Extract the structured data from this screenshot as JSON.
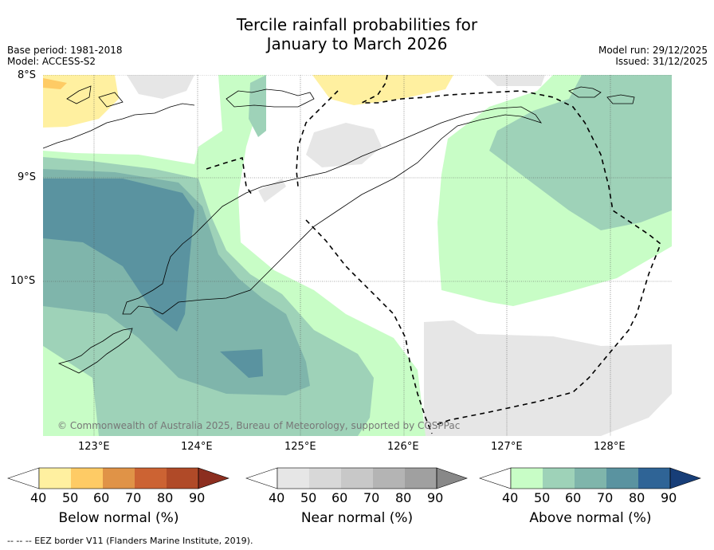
{
  "title": {
    "line1": "Tercile rainfall probabilities for",
    "line2": "January to March 2026"
  },
  "meta": {
    "base_period": "Base period: 1981-2018",
    "model": "Model: ACCESS-S2",
    "model_run": "Model run: 29/12/2025",
    "issued": "Issued: 31/12/2025"
  },
  "map": {
    "lat_labels": [
      "8°S",
      "9°S",
      "10°S"
    ],
    "lon_labels": [
      "123°E",
      "124°E",
      "125°E",
      "126°E",
      "127°E",
      "128°E"
    ],
    "copyright": "© Commonwealth of Australia 2025, Bureau of Meteorology, supported by COSPPac"
  },
  "colorbars": [
    {
      "label": "Below normal (%)",
      "ticks": [
        "40",
        "50",
        "60",
        "70",
        "80",
        "90"
      ],
      "colors": [
        "#ffffff",
        "#fff0a0",
        "#fecb65",
        "#e09347",
        "#cc6333",
        "#b04a28",
        "#8c2e1f"
      ]
    },
    {
      "label": "Near normal (%)",
      "ticks": [
        "40",
        "50",
        "60",
        "70",
        "80",
        "90"
      ],
      "colors": [
        "#ffffff",
        "#e6e6e6",
        "#d8d8d8",
        "#c8c8c8",
        "#b4b4b4",
        "#a0a0a0",
        "#888888"
      ]
    },
    {
      "label": "Above normal (%)",
      "ticks": [
        "40",
        "50",
        "60",
        "70",
        "80",
        "90"
      ],
      "colors": [
        "#ffffff",
        "#c8fdc6",
        "#9ed2b8",
        "#7fb5ab",
        "#5a93a0",
        "#2f6496",
        "#173e78"
      ]
    }
  ],
  "footer": "--  --  -- EEZ border V11 (Flanders Marine Institute, 2019)."
}
